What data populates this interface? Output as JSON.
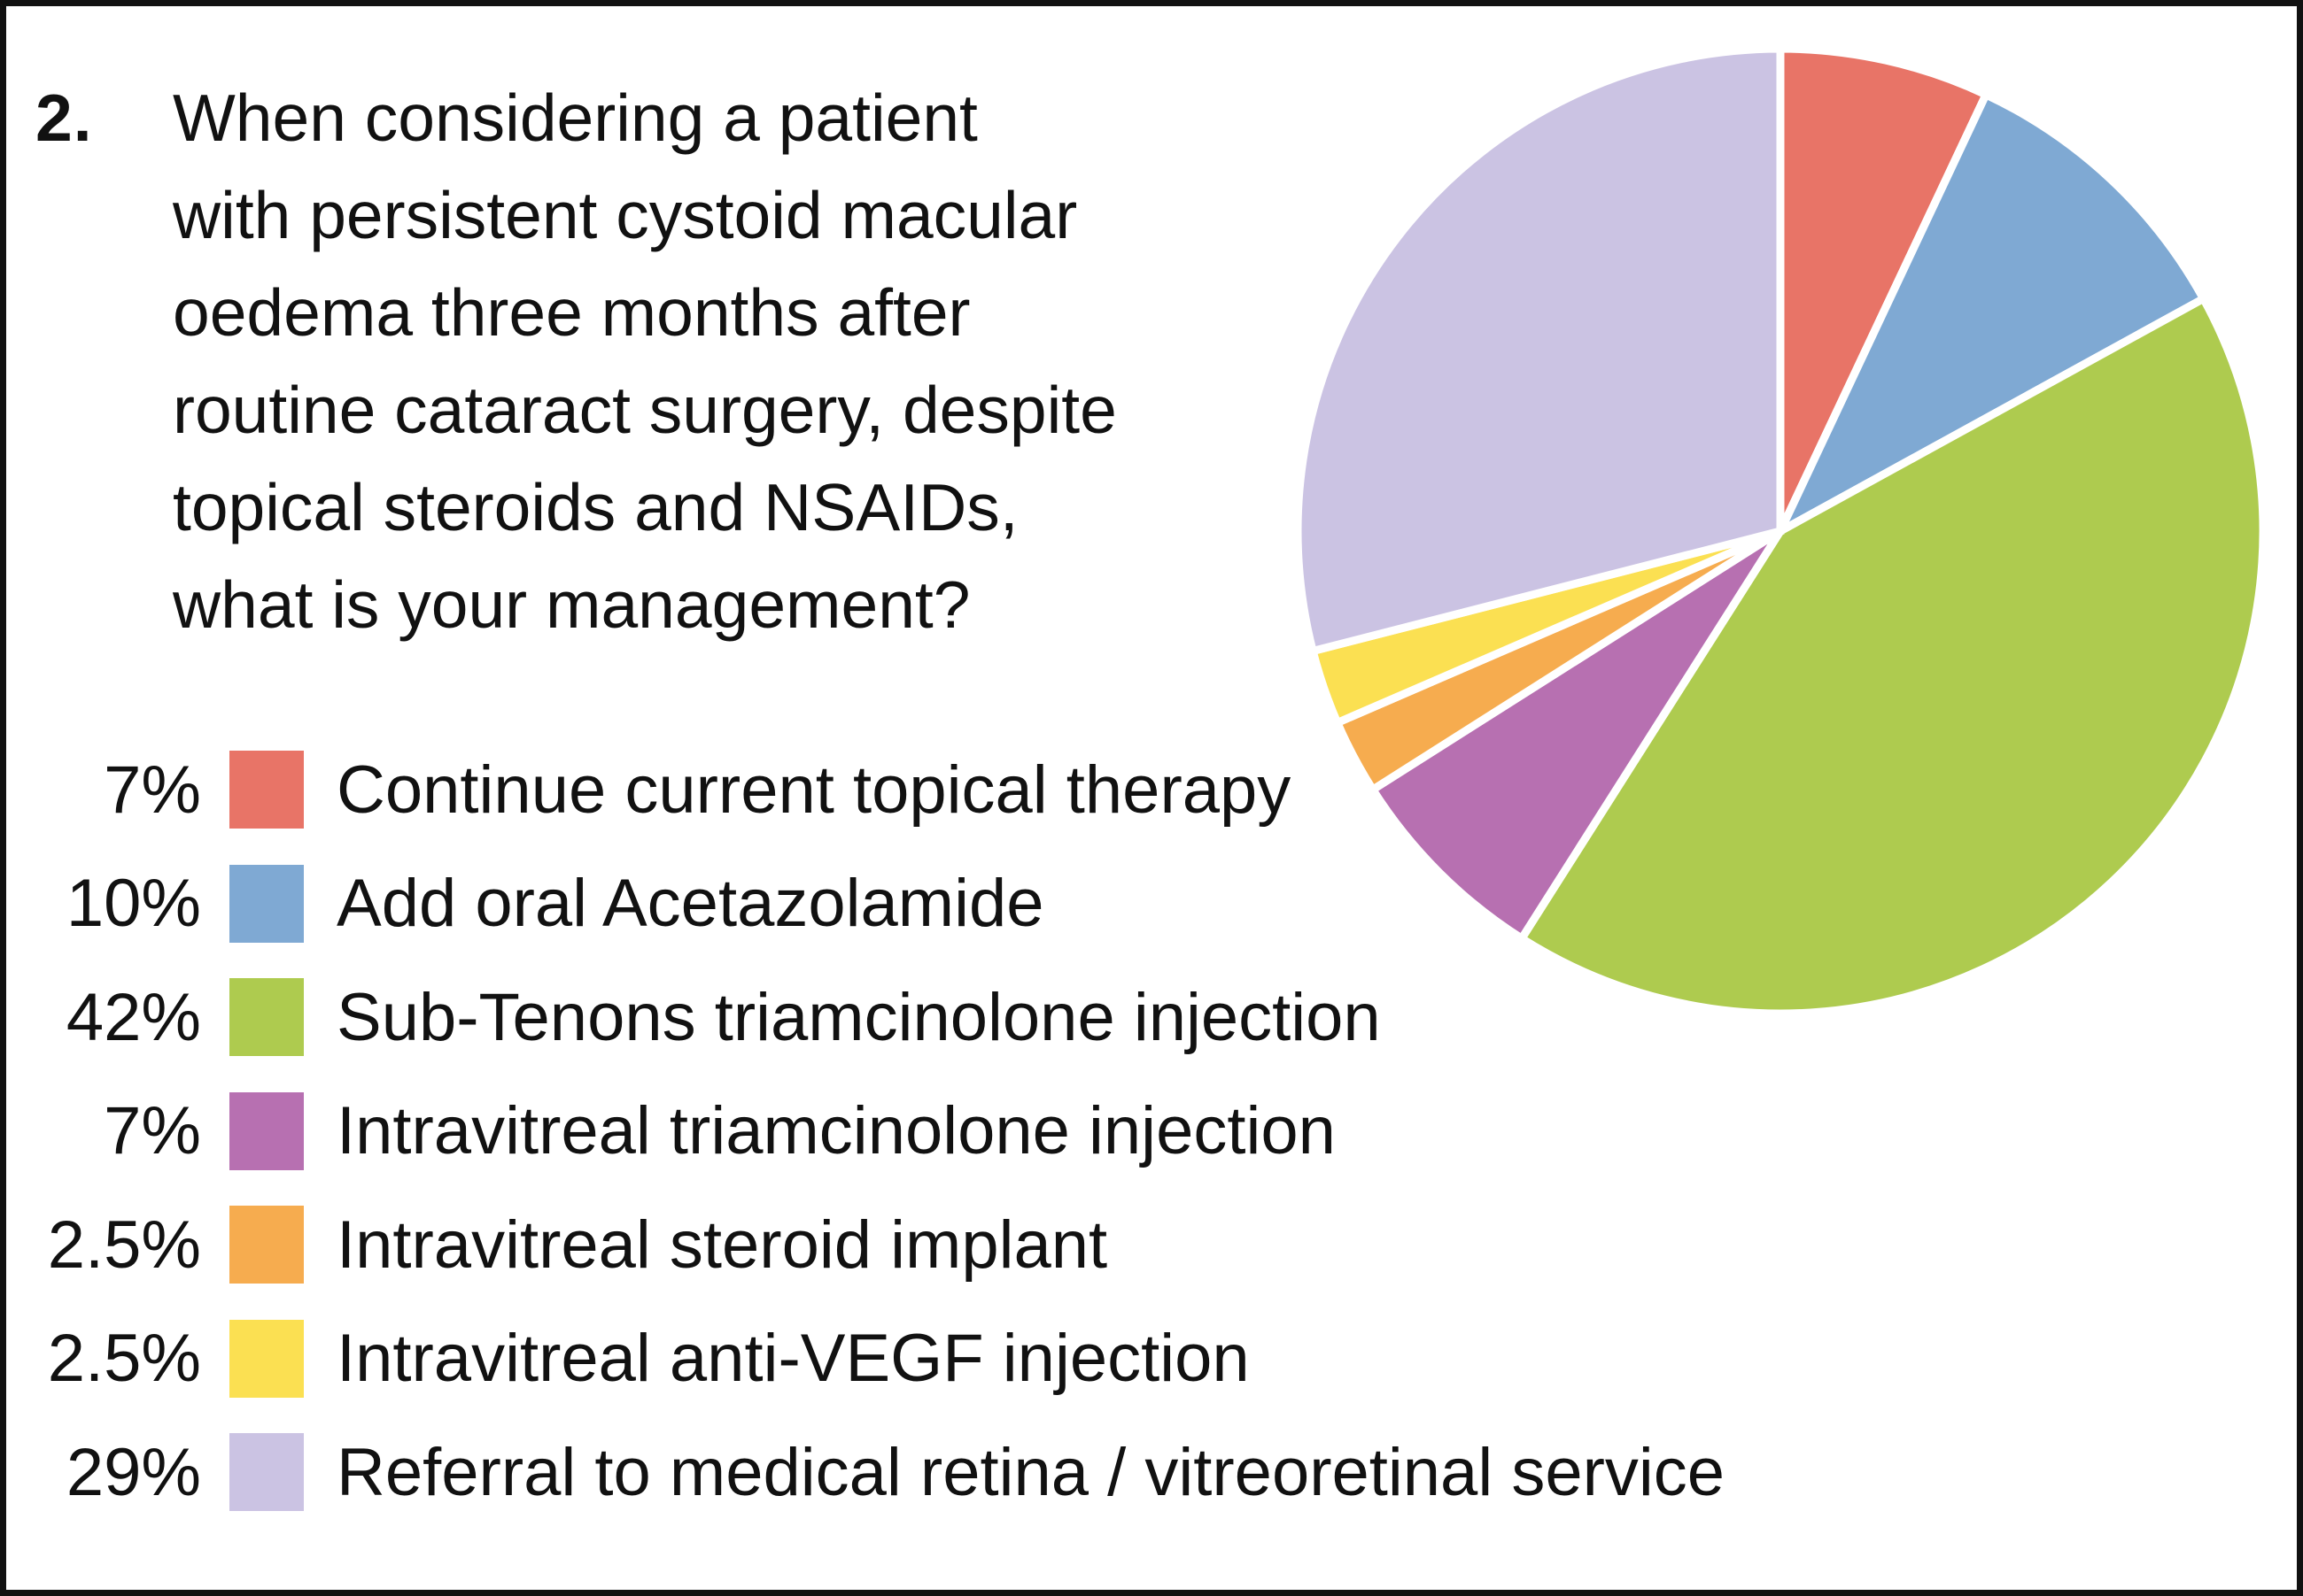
{
  "question": {
    "number": "2.",
    "lines": [
      "When considering a patient",
      "with persistent cystoid macular",
      "oedema three months after",
      "routine cataract surgery, despite",
      "topical steroids and NSAIDs,",
      "what is your management?"
    ]
  },
  "chart_data": {
    "type": "pie",
    "title": "When considering a patient with persistent cystoid macular oedema three months after routine cataract surgery, despite topical steroids and NSAIDs, what is your management?",
    "start_angle_deg": 0,
    "direction": "clockwise",
    "legend_position": "bottom-left",
    "separator_color": "#FFFFFF",
    "slices": [
      {
        "percent_label": "7%",
        "value": 7,
        "label": "Continue current topical therapy",
        "color": "#E87467"
      },
      {
        "percent_label": "10%",
        "value": 10,
        "label": "Add oral Acetazolamide",
        "color": "#7FA9D3"
      },
      {
        "percent_label": "42%",
        "value": 42,
        "label": "Sub-Tenons triamcinolone injection",
        "color": "#AECB4F"
      },
      {
        "percent_label": "7%",
        "value": 7,
        "label": "Intravitreal triamcinolone injection",
        "color": "#B770B1"
      },
      {
        "percent_label": "2.5%",
        "value": 2.5,
        "label": "Intravitreal steroid implant",
        "color": "#F6AC4F"
      },
      {
        "percent_label": "2.5%",
        "value": 2.5,
        "label": "Intravitreal anti-VEGF injection",
        "color": "#FBE052"
      },
      {
        "percent_label": "29%",
        "value": 29,
        "label": "Referral to medical retina / vitreoretinal service",
        "color": "#CBC3E3"
      }
    ]
  },
  "colors": {
    "background": "#FFFFFF",
    "border": "#111111",
    "text": "#111111"
  }
}
